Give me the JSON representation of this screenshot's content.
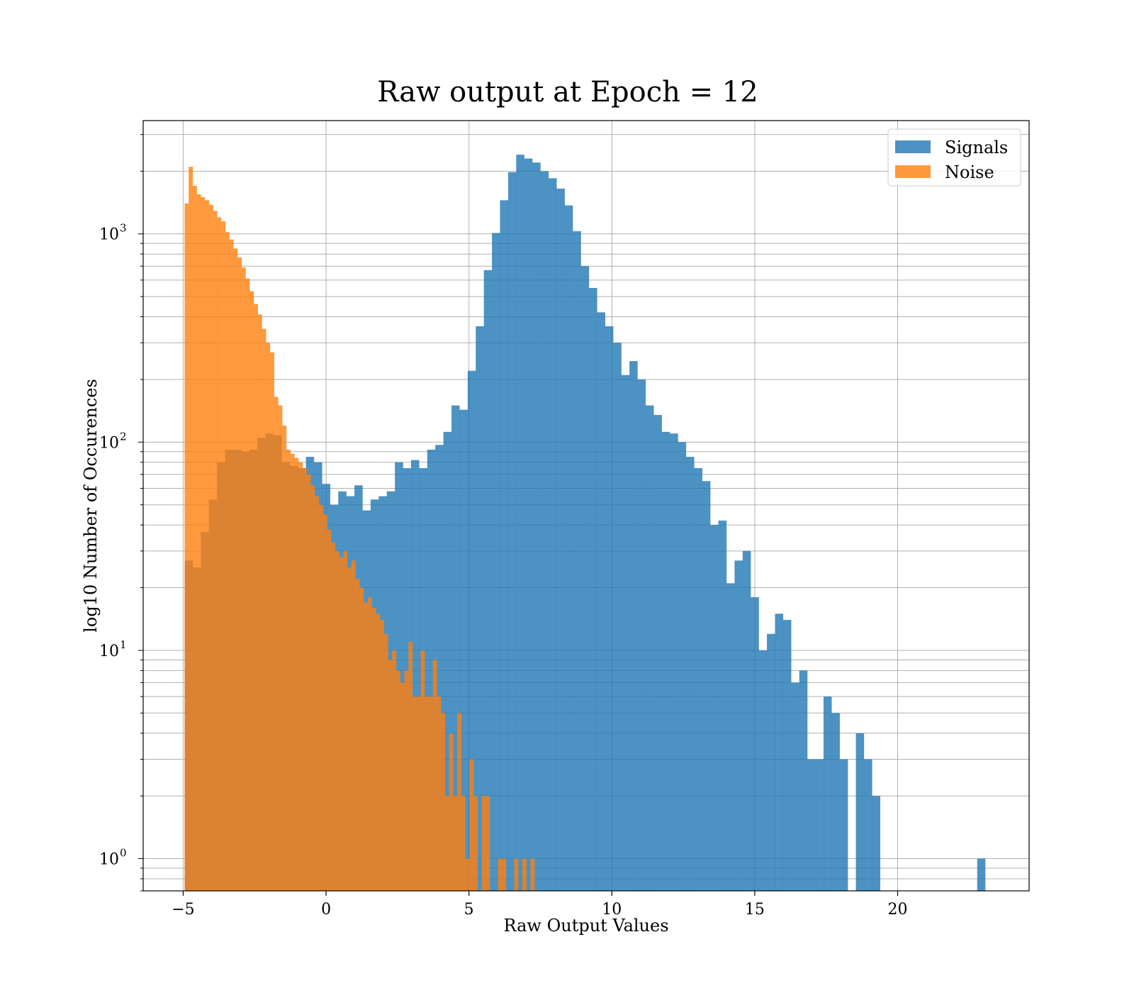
{
  "chart_data": {
    "type": "bar",
    "title": "Raw output at Epoch = 12",
    "xlabel": "Raw Output Values",
    "ylabel": "log10 Number of Occurences",
    "xlim": [
      -6.4,
      24.6
    ],
    "ylim": [
      0.7,
      3500
    ],
    "yscale": "log",
    "grid": true,
    "legend": "top-right",
    "x_ticks": [
      -5,
      0,
      5,
      10,
      15,
      20
    ],
    "x_tick_labels": [
      "−5",
      "0",
      "5",
      "10",
      "15",
      "20"
    ],
    "y_ticks": [
      1,
      10,
      100,
      1000
    ],
    "y_tick_labels": [
      {
        "base": "10",
        "exp": "0"
      },
      {
        "base": "10",
        "exp": "1"
      },
      {
        "base": "10",
        "exp": "2"
      },
      {
        "base": "10",
        "exp": "3"
      }
    ],
    "series": [
      {
        "name": "Signals",
        "color": "#1f77b4",
        "opacity": 0.8,
        "bin_start": -4.95,
        "bin_width": 0.283,
        "values": [
          27,
          25,
          37,
          53,
          80,
          92,
          92,
          90,
          92,
          105,
          110,
          108,
          80,
          77,
          75,
          85,
          80,
          63,
          50,
          58,
          55,
          62,
          47,
          53,
          55,
          58,
          80,
          75,
          82,
          75,
          92,
          97,
          112,
          150,
          143,
          220,
          360,
          670,
          1010,
          1450,
          1980,
          2400,
          2300,
          2200,
          2000,
          1850,
          1650,
          1370,
          1030,
          700,
          550,
          420,
          360,
          300,
          210,
          245,
          200,
          150,
          135,
          112,
          110,
          100,
          85,
          75,
          65,
          40,
          42,
          21,
          27,
          30,
          18,
          10,
          12,
          15,
          14,
          7,
          8,
          3,
          3,
          6,
          5,
          3,
          0,
          4,
          3,
          2,
          0,
          0,
          0,
          0,
          0,
          0,
          0,
          0,
          0,
          0,
          0,
          0,
          1
        ]
      },
      {
        "name": "Noise",
        "color": "#ff7f0e",
        "opacity": 0.8,
        "bin_start": -4.95,
        "bin_width": 0.1424,
        "values": [
          1400,
          2100,
          1700,
          1550,
          1500,
          1450,
          1380,
          1290,
          1200,
          1150,
          1020,
          940,
          850,
          770,
          690,
          610,
          530,
          460,
          410,
          350,
          300,
          270,
          165,
          150,
          120,
          92,
          88,
          84,
          80,
          75,
          70,
          62,
          55,
          50,
          45,
          38,
          33,
          30,
          28,
          30,
          25,
          27,
          22,
          20,
          17,
          18,
          16,
          15,
          14,
          12,
          9,
          10,
          8,
          7,
          8,
          11,
          6,
          6,
          10,
          6,
          6,
          9,
          6,
          5,
          2,
          4,
          2,
          5,
          2,
          1,
          3,
          2,
          0,
          2,
          2,
          0,
          0,
          1,
          1,
          0,
          0,
          1,
          0,
          1,
          0,
          1
        ]
      }
    ]
  }
}
